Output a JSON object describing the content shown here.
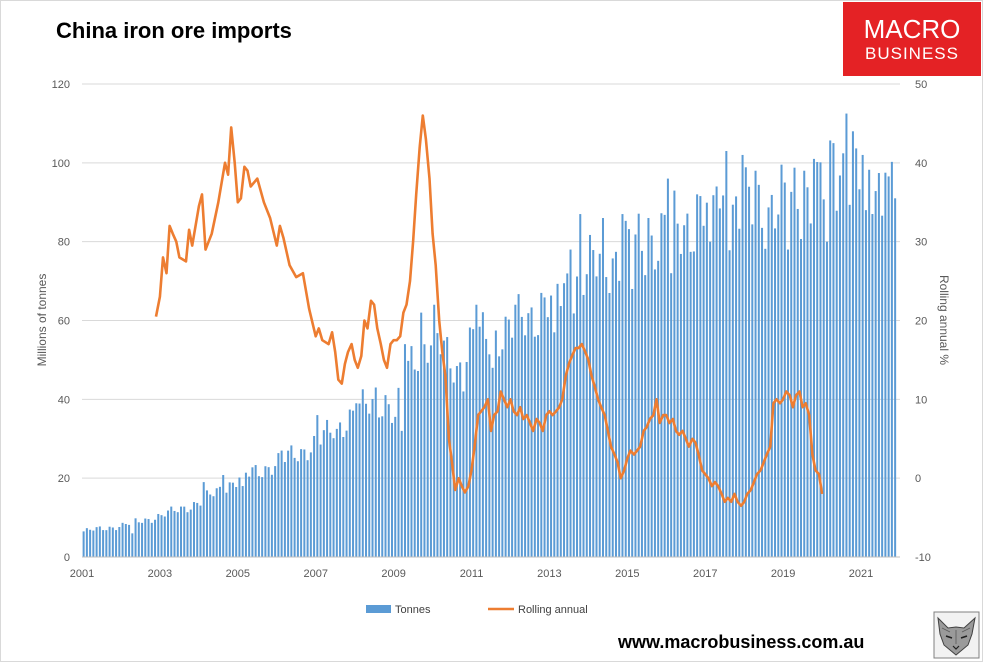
{
  "chart_data": {
    "type": "bar+line",
    "title": "China iron ore imports",
    "y_left": {
      "label": "Millions of tonnes",
      "range": [
        0,
        120
      ],
      "ticks": [
        0,
        20,
        40,
        60,
        80,
        100,
        120
      ]
    },
    "y_right": {
      "label": "Rolling annual %",
      "range": [
        -10,
        50
      ],
      "ticks": [
        -10,
        0,
        10,
        20,
        30,
        40,
        50
      ]
    },
    "x": {
      "range": [
        2001,
        2022
      ],
      "ticks": [
        2001,
        2003,
        2005,
        2007,
        2009,
        2011,
        2013,
        2015,
        2017,
        2019,
        2021
      ]
    },
    "grid": "horizontal",
    "legend": {
      "position": "bottom"
    },
    "colors": {
      "bars": "#5b9bd5",
      "line": "#ed7d31"
    },
    "series": [
      {
        "name": "Tonnes",
        "type": "bar",
        "axis": "left",
        "anchors_comment_free": true,
        "anchors": [
          [
            2001.0,
            6.5
          ],
          [
            2002.0,
            8.0
          ],
          [
            2003.0,
            10.5
          ],
          [
            2004.0,
            14.0
          ],
          [
            2005.0,
            20.0
          ],
          [
            2006.0,
            24.0
          ],
          [
            2007.0,
            29.0
          ],
          [
            2008.0,
            37.0
          ],
          [
            2008.75,
            40.0
          ],
          [
            2009.0,
            35.0
          ],
          [
            2009.4,
            50.0
          ],
          [
            2009.6,
            53.0
          ],
          [
            2010.0,
            55.0
          ],
          [
            2010.6,
            48.0
          ],
          [
            2011.0,
            55.0
          ],
          [
            2012.0,
            58.0
          ],
          [
            2013.0,
            65.0
          ],
          [
            2014.0,
            73.0
          ],
          [
            2015.0,
            78.0
          ],
          [
            2016.0,
            82.0
          ],
          [
            2017.0,
            88.0
          ],
          [
            2018.0,
            88.0
          ],
          [
            2019.0,
            90.0
          ],
          [
            2020.0,
            93.0
          ],
          [
            2020.5,
            100.0
          ],
          [
            2021.0,
            95.0
          ],
          [
            2021.5,
            94.0
          ],
          [
            2021.9,
            95.0
          ]
        ],
        "peaks": [
          [
            2004.05,
            19.0
          ],
          [
            2004.55,
            20.8
          ],
          [
            2006.05,
            27.0
          ],
          [
            2007.0,
            36.0
          ],
          [
            2007.5,
            32.5
          ],
          [
            2008.0,
            39.0
          ],
          [
            2008.5,
            43.0
          ],
          [
            2009.25,
            54.0
          ],
          [
            2009.65,
            62.0
          ],
          [
            2010.0,
            64.0
          ],
          [
            2011.05,
            64.0
          ],
          [
            2012.05,
            64.0
          ],
          [
            2012.75,
            67.0
          ],
          [
            2013.5,
            78.0
          ],
          [
            2013.75,
            87.0
          ],
          [
            2014.3,
            86.0
          ],
          [
            2014.8,
            87.0
          ],
          [
            2015.5,
            86.0
          ],
          [
            2016.0,
            96.0
          ],
          [
            2016.75,
            92.0
          ],
          [
            2017.25,
            94.0
          ],
          [
            2017.5,
            103.0
          ],
          [
            2017.9,
            102.0
          ],
          [
            2018.25,
            98.0
          ],
          [
            2019.0,
            95.0
          ],
          [
            2019.5,
            98.0
          ],
          [
            2019.75,
            101.0
          ],
          [
            2020.25,
            105.0
          ],
          [
            2020.55,
            112.5
          ],
          [
            2020.75,
            108.0
          ],
          [
            2021.0,
            102.0
          ],
          [
            2021.6,
            97.5
          ],
          [
            2021.92,
            105.0
          ]
        ],
        "troughs": [
          [
            2002.25,
            6.0
          ],
          [
            2005.1,
            18.0
          ],
          [
            2009.15,
            32.0
          ],
          [
            2010.75,
            42.0
          ],
          [
            2011.5,
            48.0
          ],
          [
            2013.05,
            57.0
          ],
          [
            2015.05,
            68.0
          ],
          [
            2016.05,
            72.0
          ],
          [
            2017.1,
            80.0
          ],
          [
            2019.1,
            78.0
          ],
          [
            2020.1,
            80.0
          ],
          [
            2021.12,
            88.0
          ],
          [
            2021.85,
            91.0
          ]
        ]
      },
      {
        "name": "Rolling annual",
        "type": "line",
        "axis": "right",
        "points": [
          [
            2002.9,
            20.5
          ],
          [
            2003.0,
            23.0
          ],
          [
            2003.08,
            28.0
          ],
          [
            2003.17,
            26.0
          ],
          [
            2003.25,
            32.0
          ],
          [
            2003.33,
            31.0
          ],
          [
            2003.42,
            30.0
          ],
          [
            2003.5,
            28.0
          ],
          [
            2003.67,
            27.5
          ],
          [
            2003.75,
            31.5
          ],
          [
            2003.83,
            29.5
          ],
          [
            2004.0,
            34.5
          ],
          [
            2004.08,
            36.0
          ],
          [
            2004.17,
            29.0
          ],
          [
            2004.33,
            31.0
          ],
          [
            2004.5,
            35.0
          ],
          [
            2004.67,
            40.0
          ],
          [
            2004.75,
            38.5
          ],
          [
            2004.83,
            44.5
          ],
          [
            2004.92,
            40.0
          ],
          [
            2005.0,
            35.0
          ],
          [
            2005.08,
            35.5
          ],
          [
            2005.17,
            39.5
          ],
          [
            2005.25,
            39.0
          ],
          [
            2005.33,
            37.0
          ],
          [
            2005.5,
            38.0
          ],
          [
            2005.67,
            35.0
          ],
          [
            2005.83,
            33.0
          ],
          [
            2006.0,
            29.5
          ],
          [
            2006.08,
            32.0
          ],
          [
            2006.17,
            30.5
          ],
          [
            2006.33,
            27.0
          ],
          [
            2006.5,
            25.5
          ],
          [
            2006.67,
            26.0
          ],
          [
            2006.83,
            21.5
          ],
          [
            2007.0,
            18.0
          ],
          [
            2007.08,
            19.0
          ],
          [
            2007.17,
            17.5
          ],
          [
            2007.33,
            17.0
          ],
          [
            2007.42,
            18.5
          ],
          [
            2007.5,
            16.0
          ],
          [
            2007.58,
            12.5
          ],
          [
            2007.67,
            12.0
          ],
          [
            2007.75,
            14.5
          ],
          [
            2007.83,
            16.0
          ],
          [
            2007.92,
            17.0
          ],
          [
            2008.0,
            15.0
          ],
          [
            2008.08,
            14.0
          ],
          [
            2008.17,
            15.5
          ],
          [
            2008.25,
            20.0
          ],
          [
            2008.33,
            19.0
          ],
          [
            2008.42,
            22.5
          ],
          [
            2008.5,
            22.0
          ],
          [
            2008.58,
            19.0
          ],
          [
            2008.67,
            17.0
          ],
          [
            2008.75,
            15.0
          ],
          [
            2008.83,
            14.0
          ],
          [
            2008.92,
            17.0
          ],
          [
            2009.0,
            17.5
          ],
          [
            2009.08,
            17.5
          ],
          [
            2009.17,
            18.0
          ],
          [
            2009.25,
            21.0
          ],
          [
            2009.33,
            22.0
          ],
          [
            2009.42,
            25.0
          ],
          [
            2009.5,
            30.0
          ],
          [
            2009.58,
            36.0
          ],
          [
            2009.67,
            42.0
          ],
          [
            2009.75,
            46.0
          ],
          [
            2009.83,
            43.0
          ],
          [
            2009.92,
            38.0
          ],
          [
            2010.0,
            31.0
          ],
          [
            2010.08,
            27.0
          ],
          [
            2010.17,
            20.0
          ],
          [
            2010.25,
            16.0
          ],
          [
            2010.33,
            13.0
          ],
          [
            2010.42,
            5.0
          ],
          [
            2010.5,
            2.0
          ],
          [
            2010.58,
            -1.5
          ],
          [
            2010.67,
            0.0
          ],
          [
            2010.75,
            -1.0
          ],
          [
            2010.83,
            -1.8
          ],
          [
            2010.92,
            -1.0
          ],
          [
            2011.0,
            1.0
          ],
          [
            2011.08,
            4.0
          ],
          [
            2011.17,
            8.0
          ],
          [
            2011.25,
            8.5
          ],
          [
            2011.33,
            9.0
          ],
          [
            2011.42,
            10.0
          ],
          [
            2011.5,
            6.0
          ],
          [
            2011.58,
            8.0
          ],
          [
            2011.67,
            8.5
          ],
          [
            2011.75,
            11.0
          ],
          [
            2011.83,
            10.0
          ],
          [
            2011.92,
            9.0
          ],
          [
            2012.0,
            10.0
          ],
          [
            2012.08,
            8.5
          ],
          [
            2012.17,
            8.0
          ],
          [
            2012.25,
            9.0
          ],
          [
            2012.33,
            7.5
          ],
          [
            2012.42,
            8.0
          ],
          [
            2012.5,
            7.0
          ],
          [
            2012.58,
            6.0
          ],
          [
            2012.67,
            7.5
          ],
          [
            2012.75,
            7.0
          ],
          [
            2012.83,
            6.0
          ],
          [
            2012.92,
            8.0
          ],
          [
            2013.0,
            8.5
          ],
          [
            2013.08,
            8.0
          ],
          [
            2013.17,
            8.5
          ],
          [
            2013.25,
            9.0
          ],
          [
            2013.33,
            10.0
          ],
          [
            2013.42,
            13.0
          ],
          [
            2013.5,
            14.5
          ],
          [
            2013.58,
            15.5
          ],
          [
            2013.67,
            16.5
          ],
          [
            2013.75,
            16.5
          ],
          [
            2013.83,
            17.0
          ],
          [
            2013.92,
            16.0
          ],
          [
            2014.0,
            15.0
          ],
          [
            2014.08,
            13.0
          ],
          [
            2014.17,
            11.5
          ],
          [
            2014.25,
            10.0
          ],
          [
            2014.33,
            9.0
          ],
          [
            2014.42,
            8.0
          ],
          [
            2014.5,
            6.0
          ],
          [
            2014.58,
            4.0
          ],
          [
            2014.67,
            3.0
          ],
          [
            2014.75,
            2.0
          ],
          [
            2014.83,
            0.0
          ],
          [
            2014.92,
            1.0
          ],
          [
            2015.0,
            2.5
          ],
          [
            2015.08,
            3.5
          ],
          [
            2015.17,
            3.0
          ],
          [
            2015.25,
            3.5
          ],
          [
            2015.33,
            4.0
          ],
          [
            2015.42,
            6.0
          ],
          [
            2015.5,
            6.5
          ],
          [
            2015.58,
            7.5
          ],
          [
            2015.67,
            8.0
          ],
          [
            2015.75,
            10.0
          ],
          [
            2015.83,
            7.0
          ],
          [
            2015.92,
            8.0
          ],
          [
            2016.0,
            8.0
          ],
          [
            2016.08,
            7.0
          ],
          [
            2016.17,
            7.5
          ],
          [
            2016.25,
            6.0
          ],
          [
            2016.33,
            5.5
          ],
          [
            2016.42,
            6.0
          ],
          [
            2016.5,
            5.0
          ],
          [
            2016.58,
            4.0
          ],
          [
            2016.67,
            5.0
          ],
          [
            2016.75,
            4.5
          ],
          [
            2016.83,
            3.0
          ],
          [
            2016.92,
            1.0
          ],
          [
            2017.0,
            0.5
          ],
          [
            2017.08,
            0.0
          ],
          [
            2017.17,
            -1.0
          ],
          [
            2017.25,
            -0.5
          ],
          [
            2017.33,
            -1.0
          ],
          [
            2017.42,
            -2.0
          ],
          [
            2017.5,
            -3.0
          ],
          [
            2017.58,
            -2.5
          ],
          [
            2017.67,
            -3.0
          ],
          [
            2017.75,
            -2.0
          ],
          [
            2017.83,
            -3.0
          ],
          [
            2017.92,
            -3.5
          ],
          [
            2018.0,
            -3.0
          ],
          [
            2018.08,
            -2.0
          ],
          [
            2018.17,
            -1.5
          ],
          [
            2018.25,
            -0.5
          ],
          [
            2018.33,
            0.5
          ],
          [
            2018.42,
            1.0
          ],
          [
            2018.5,
            2.0
          ],
          [
            2018.58,
            3.0
          ],
          [
            2018.67,
            4.0
          ],
          [
            2018.75,
            9.5
          ],
          [
            2018.83,
            10.0
          ],
          [
            2018.92,
            9.5
          ],
          [
            2019.0,
            10.0
          ],
          [
            2019.08,
            11.0
          ],
          [
            2019.17,
            10.5
          ],
          [
            2019.25,
            9.0
          ],
          [
            2019.33,
            10.5
          ],
          [
            2019.42,
            11.0
          ],
          [
            2019.5,
            9.0
          ],
          [
            2019.58,
            9.5
          ],
          [
            2019.67,
            8.0
          ],
          [
            2019.75,
            3.0
          ],
          [
            2019.83,
            1.0
          ],
          [
            2019.92,
            0.5
          ],
          [
            2020.0,
            -2.0
          ]
        ]
      }
    ]
  },
  "branding": {
    "logo_line1": "MACRO",
    "logo_line2": "BUSINESS",
    "url": "www.macrobusiness.com.au",
    "logo_color": "#e42225",
    "wolf_icon": "wolf-icon"
  }
}
